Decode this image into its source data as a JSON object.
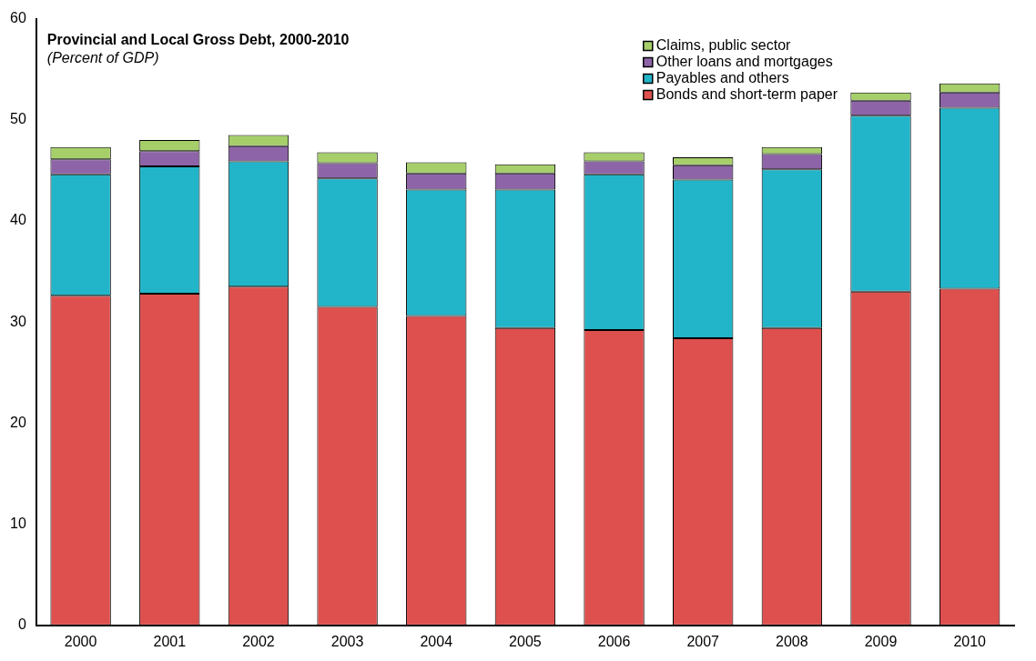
{
  "chart_data": {
    "type": "bar",
    "title": "Provincial and Local Gross Debt, 2000-2010",
    "subtitle": "(Percent of GDP)",
    "categories": [
      "2000",
      "2001",
      "2002",
      "2003",
      "2004",
      "2005",
      "2006",
      "2007",
      "2008",
      "2009",
      "2010"
    ],
    "stacked": true,
    "ylim": [
      0,
      60
    ],
    "yticks": [
      0,
      10,
      20,
      30,
      40,
      50,
      60
    ],
    "grid": false,
    "legend": "top right",
    "series": [
      {
        "name": "Bonds and short-term paper",
        "color": "#de504e",
        "values": [
          32.6,
          32.8,
          33.5,
          31.5,
          30.6,
          29.4,
          29.2,
          28.4,
          29.4,
          33.0,
          33.3
        ]
      },
      {
        "name": "Payables and others",
        "color": "#22b5c9",
        "values": [
          12.0,
          12.6,
          12.4,
          12.7,
          12.5,
          13.7,
          15.4,
          15.7,
          15.7,
          17.4,
          17.9
        ]
      },
      {
        "name": "Other loans and mortgages",
        "color": "#8e64a8",
        "values": [
          1.5,
          1.5,
          1.5,
          1.5,
          1.6,
          1.6,
          1.3,
          1.4,
          1.5,
          1.5,
          1.5
        ]
      },
      {
        "name": "Claims, public sector",
        "color": "#a6cf6a",
        "values": [
          1.2,
          1.1,
          1.1,
          1.1,
          1.1,
          0.9,
          0.9,
          0.8,
          0.7,
          0.8,
          0.9
        ]
      }
    ]
  }
}
